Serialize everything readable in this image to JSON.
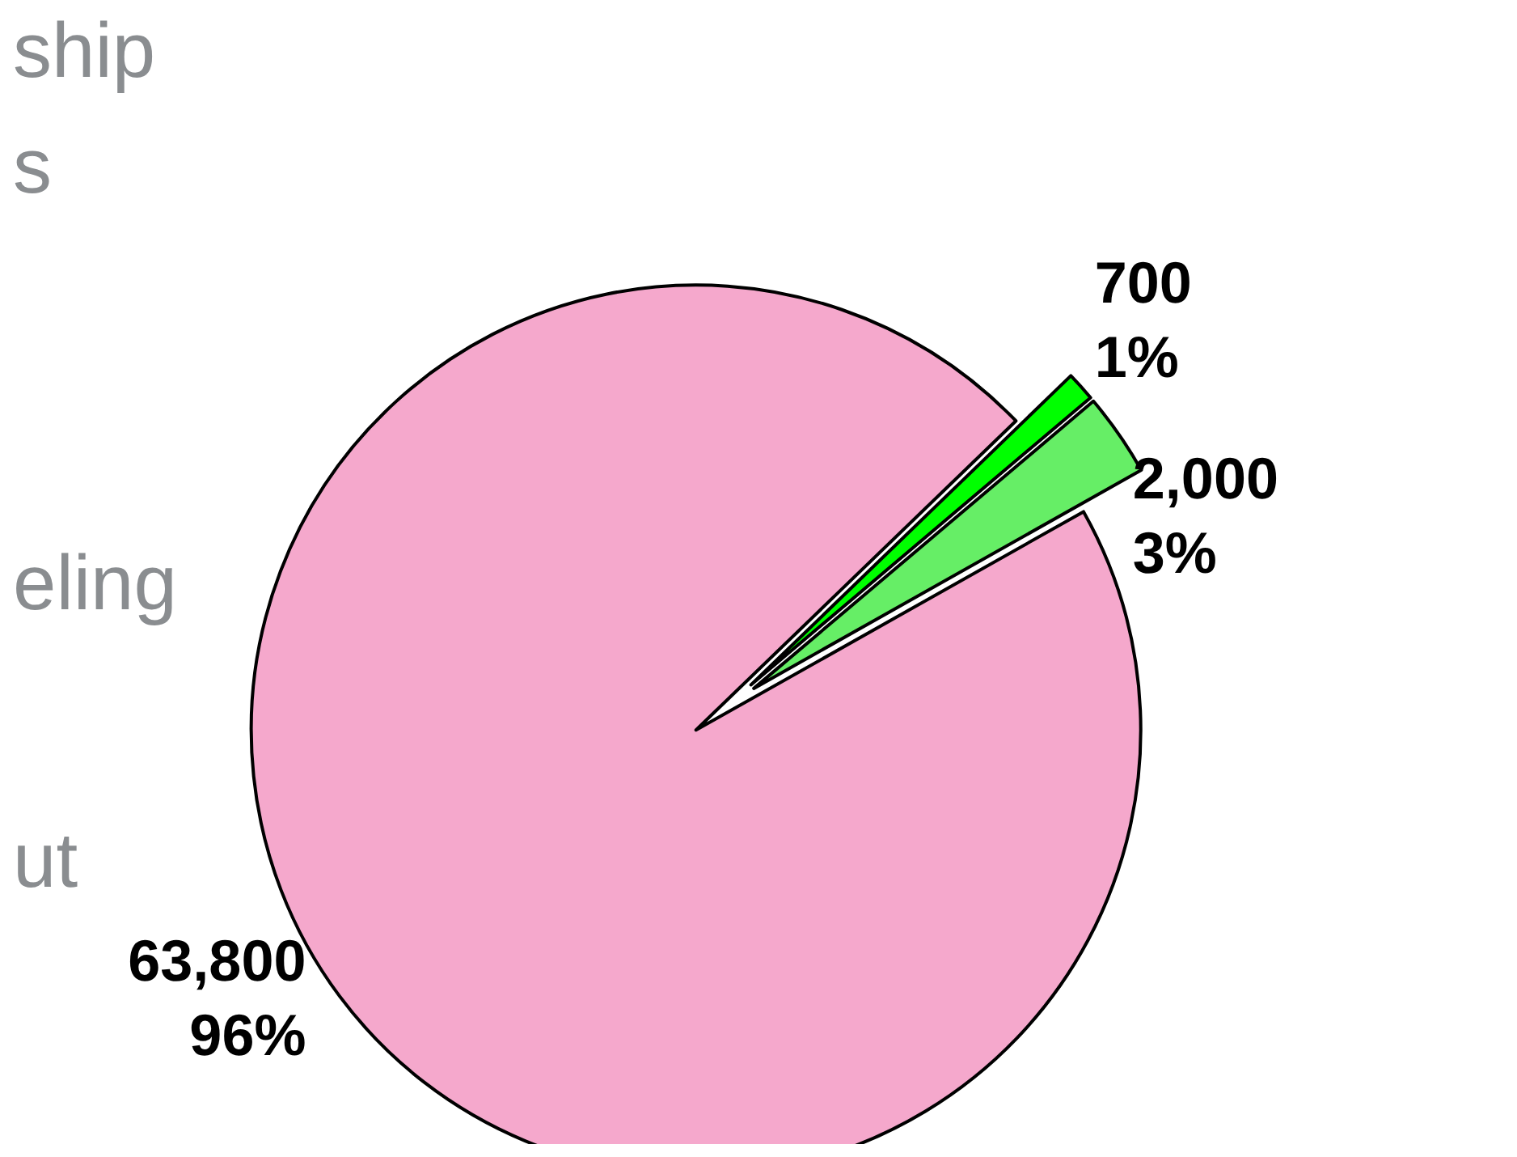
{
  "chart_data": {
    "type": "pie",
    "categories": [
      null,
      null,
      null
    ],
    "values": [
      700,
      2000,
      63800
    ],
    "colors": [
      "#00ff00",
      "#66ee66",
      "#f5a8cc"
    ],
    "value_labels": [
      "700\n1%",
      "2,000\n3%",
      "63,800\n96%"
    ],
    "annotations": [
      "ship",
      "s",
      "eling",
      "ut"
    ]
  }
}
